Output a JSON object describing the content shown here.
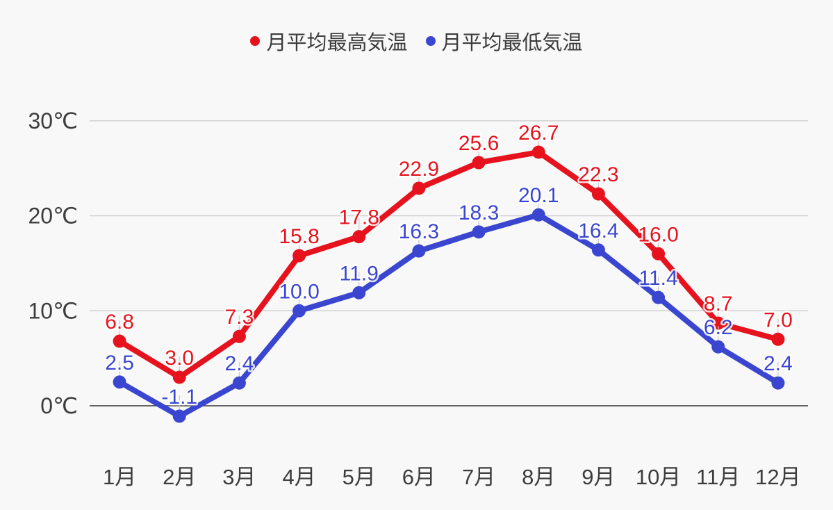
{
  "chart_data": {
    "type": "line",
    "title": "",
    "categories": [
      "1月",
      "2月",
      "3月",
      "4月",
      "5月",
      "6月",
      "7月",
      "8月",
      "9月",
      "10月",
      "11月",
      "12月"
    ],
    "series": [
      {
        "name": "月平均最高気温",
        "color": "#e6131e",
        "values": [
          6.8,
          3.0,
          7.3,
          15.8,
          17.8,
          22.9,
          25.6,
          26.7,
          22.3,
          16.0,
          8.7,
          7.0
        ]
      },
      {
        "name": "月平均最低気温",
        "color": "#3b46d0",
        "values": [
          2.5,
          -1.1,
          2.4,
          10.0,
          11.9,
          16.3,
          18.3,
          20.1,
          16.4,
          11.4,
          6.2,
          2.4
        ]
      }
    ],
    "xlabel": "",
    "ylabel": "",
    "y_axis": {
      "ticks": [
        0,
        10,
        20,
        30
      ],
      "tick_labels": [
        "0℃",
        "10℃",
        "20℃",
        "30℃"
      ],
      "ylim": [
        -3.5,
        31
      ]
    },
    "grid": true,
    "legend_position": "top",
    "data_labels": true,
    "colors": {
      "background": "#f8f8f8",
      "gridline": "#cccccc",
      "zero_line": "#333333",
      "axis_text": "#3d3d3d",
      "stem": "#c9c9c9"
    }
  }
}
